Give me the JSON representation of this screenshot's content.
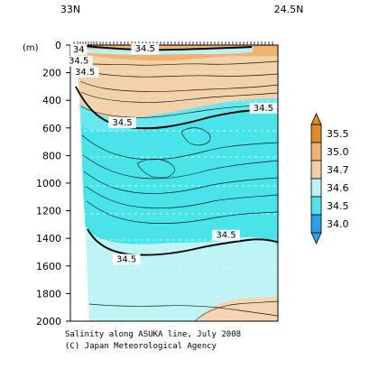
{
  "chart_data": {
    "type": "contour",
    "top_labels": [
      "33N",
      "24.5N"
    ],
    "y_unit_label": "(m)",
    "yticks": [
      0,
      200,
      400,
      600,
      800,
      1000,
      1200,
      1400,
      1600,
      1800,
      2000
    ],
    "ylim": [
      0,
      2000
    ],
    "x_domain": [
      0,
      100
    ],
    "contour_labels": [
      {
        "text": "34",
        "x": 4,
        "y": 45
      },
      {
        "text": "34.5",
        "x": 36,
        "y": 40
      },
      {
        "text": "34.5",
        "x": 4,
        "y": 128
      },
      {
        "text": "34.5",
        "x": 7,
        "y": 208
      },
      {
        "text": "34.5",
        "x": 93,
        "y": 470
      },
      {
        "text": "34.5",
        "x": 25,
        "y": 575
      },
      {
        "text": "34.5",
        "x": 75,
        "y": 1390
      },
      {
        "text": "34.5",
        "x": 27,
        "y": 1565
      }
    ],
    "colorbar": {
      "levels": [
        "35.5",
        "35.0",
        "34.7",
        "34.6",
        "34.5",
        "34.0"
      ],
      "colors": [
        "#E08A2B",
        "#EFB370",
        "#F4CDA6",
        "#BFF1F6",
        "#54E2E8",
        "#2A9FE6"
      ]
    },
    "colors": {
      "deep": "#BFF4F7",
      "mid": "#5FE8EC",
      "fresh": "#3FDEE8",
      "salty": "#F3D2AE",
      "salty2": "#F6D6B5",
      "seafloor": "#FFFFFF",
      "contour": "#000000"
    }
  },
  "captions": {
    "line1": "Salinity along ASUKA line, July 2008",
    "line2": "(C) Japan Meteorological Agency"
  }
}
